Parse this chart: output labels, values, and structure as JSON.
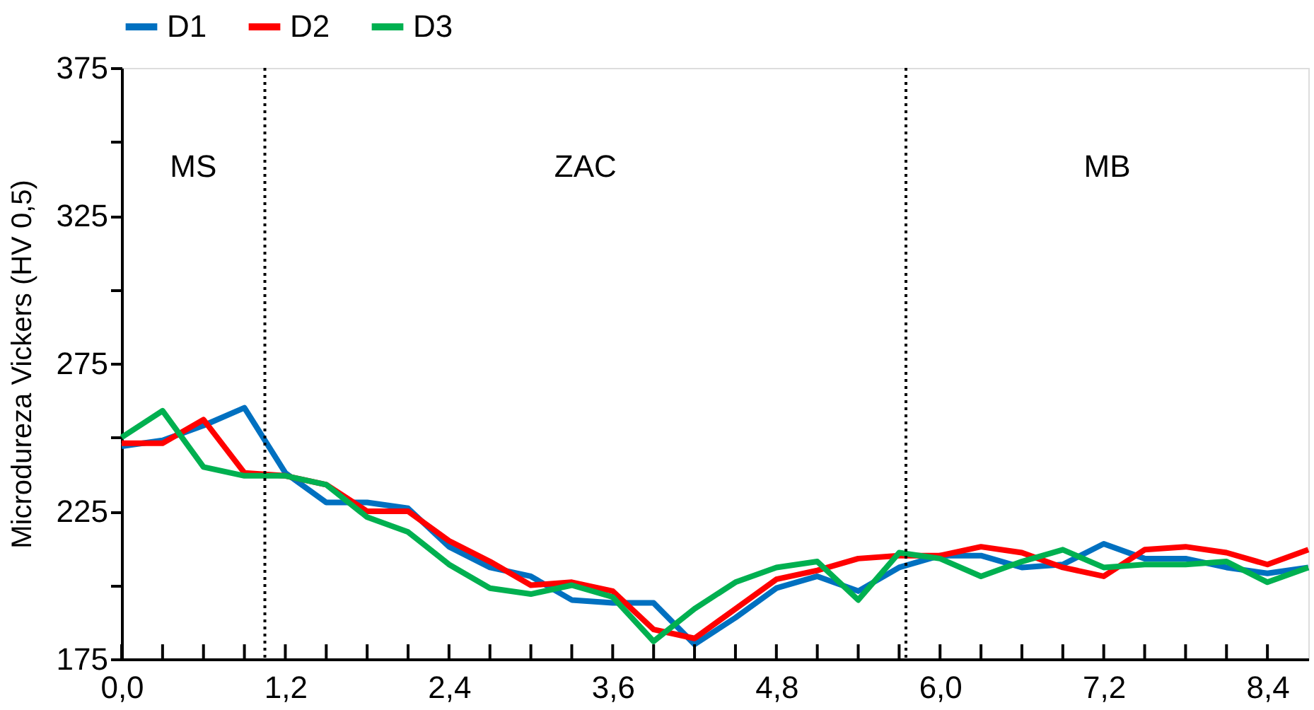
{
  "chart_data": {
    "type": "line",
    "ylabel": "Microdureza Vickers (HV 0,5)",
    "x": [
      0,
      0.3,
      0.6,
      0.9,
      1.2,
      1.5,
      1.8,
      2.1,
      2.4,
      2.7,
      3.0,
      3.3,
      3.6,
      3.9,
      4.2,
      4.5,
      4.8,
      5.1,
      5.4,
      5.7,
      6.0,
      6.3,
      6.6,
      6.9,
      7.2,
      7.5,
      7.8,
      8.1,
      8.4,
      8.7
    ],
    "series": [
      {
        "name": "D1",
        "color": "#0070c0",
        "values": [
          247,
          249,
          254,
          260,
          238,
          228,
          228,
          226,
          213,
          206,
          203,
          195,
          194,
          194,
          180,
          189,
          199,
          203,
          198,
          206,
          210,
          210,
          206,
          207,
          214,
          209,
          209,
          206,
          204,
          206
        ]
      },
      {
        "name": "D2",
        "color": "#ff0000",
        "values": [
          248,
          248,
          256,
          238,
          237,
          234,
          225,
          225,
          215,
          208,
          200,
          201,
          198,
          185,
          182,
          192,
          202,
          205,
          209,
          210,
          210,
          213,
          211,
          206,
          203,
          212,
          213,
          211,
          207,
          212
        ]
      },
      {
        "name": "D3",
        "color": "#00b050",
        "values": [
          250,
          259,
          240,
          237,
          237,
          234,
          223,
          218,
          207,
          199,
          197,
          200,
          196,
          181,
          192,
          201,
          206,
          208,
          195,
          211,
          209,
          203,
          208,
          212,
          206,
          207,
          207,
          208,
          201,
          206
        ]
      }
    ],
    "xlim": [
      0,
      8.7
    ],
    "xticks": [
      {
        "value": 0,
        "label": "0,0"
      },
      {
        "value": 0.3,
        "label": null
      },
      {
        "value": 0.6,
        "label": null
      },
      {
        "value": 0.9,
        "label": null
      },
      {
        "value": 1.2,
        "label": "1,2"
      },
      {
        "value": 1.5,
        "label": null
      },
      {
        "value": 1.8,
        "label": null
      },
      {
        "value": 2.1,
        "label": null
      },
      {
        "value": 2.4,
        "label": "2,4"
      },
      {
        "value": 2.7,
        "label": null
      },
      {
        "value": 3.0,
        "label": null
      },
      {
        "value": 3.3,
        "label": null
      },
      {
        "value": 3.6,
        "label": "3,6"
      },
      {
        "value": 3.9,
        "label": null
      },
      {
        "value": 4.2,
        "label": null
      },
      {
        "value": 4.5,
        "label": null
      },
      {
        "value": 4.8,
        "label": "4,8"
      },
      {
        "value": 5.1,
        "label": null
      },
      {
        "value": 5.4,
        "label": null
      },
      {
        "value": 5.7,
        "label": null
      },
      {
        "value": 6.0,
        "label": "6,0"
      },
      {
        "value": 6.3,
        "label": null
      },
      {
        "value": 6.6,
        "label": null
      },
      {
        "value": 6.9,
        "label": null
      },
      {
        "value": 7.2,
        "label": "7,2"
      },
      {
        "value": 7.5,
        "label": null
      },
      {
        "value": 7.8,
        "label": null
      },
      {
        "value": 8.1,
        "label": null
      },
      {
        "value": 8.4,
        "label": "8,4"
      }
    ],
    "ylim": [
      175,
      375
    ],
    "yticks": [
      175,
      {
        "value": 200,
        "label": null
      },
      225,
      {
        "value": 250,
        "label": null
      },
      275,
      {
        "value": 300,
        "label": null
      },
      325,
      {
        "value": 350,
        "label": null
      },
      375
    ],
    "ref_lines": [
      {
        "axis": "x",
        "value": 1.05,
        "label": null,
        "color": "#000000",
        "line_style": "dotted"
      },
      {
        "axis": "x",
        "value": 5.75,
        "label": null,
        "color": "#000000",
        "line_style": "dotted"
      }
    ],
    "annotations": [
      "MS",
      "ZAC",
      "MB"
    ],
    "grid": false,
    "legend": "top",
    "marker": "none",
    "line_style": "solid"
  }
}
